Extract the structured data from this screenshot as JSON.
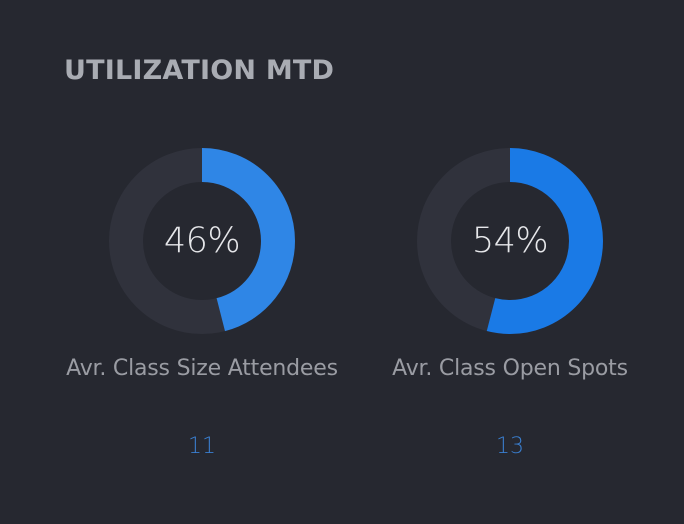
{
  "widget": {
    "title": "UTILIZATION MTD"
  },
  "colors": {
    "background": "#262830",
    "track": "#30323c",
    "accent_left": "#2f86e6",
    "accent_right": "#1a7ae6",
    "count_text": "#3a7fd0"
  },
  "gauges": [
    {
      "percent_value": 46,
      "percent_label": "46%",
      "label": "Avr. Class Size Attendees",
      "count": "11"
    },
    {
      "percent_value": 54,
      "percent_label": "54%",
      "label": "Avr. Class Open Spots",
      "count": "13"
    }
  ]
}
